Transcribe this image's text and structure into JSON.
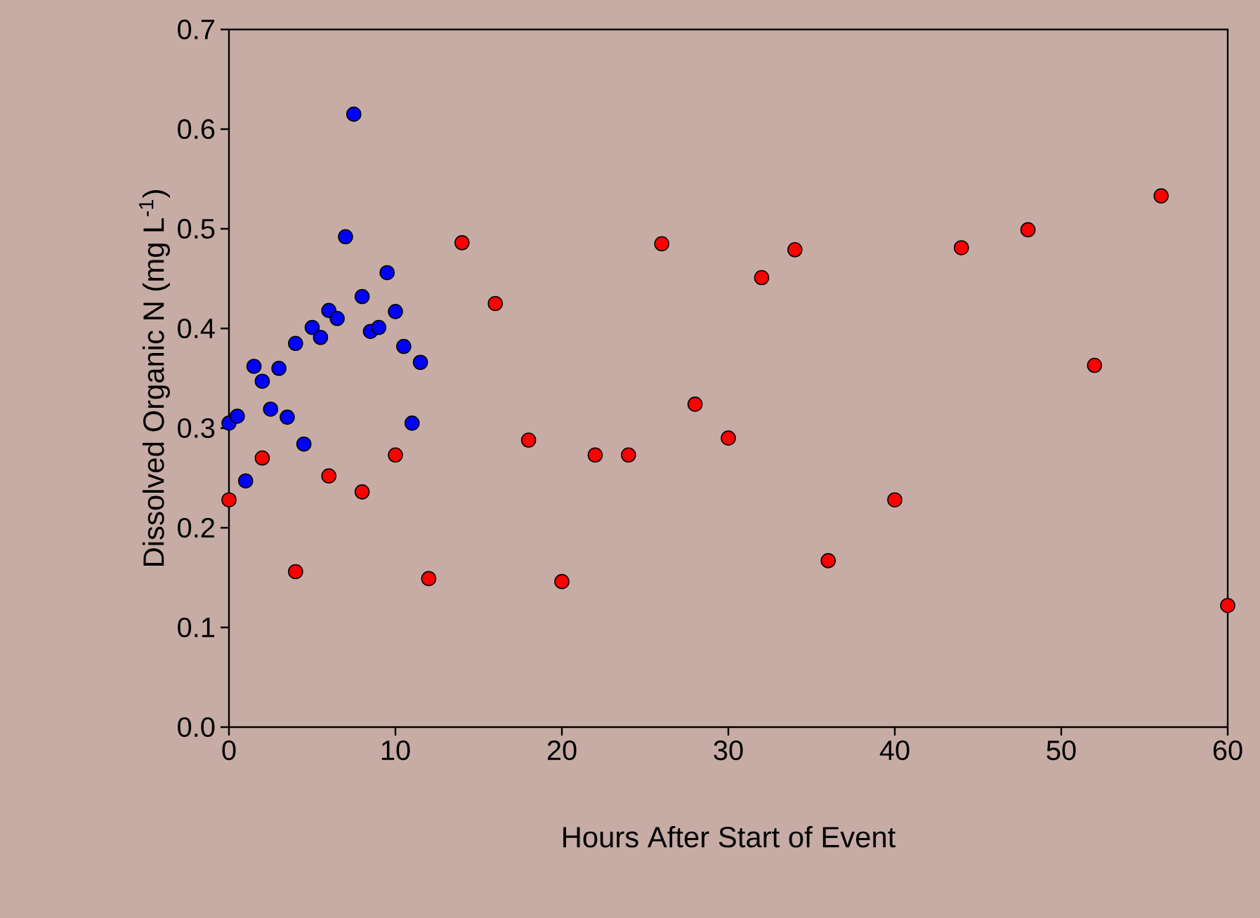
{
  "chart_data": {
    "type": "scatter",
    "xlabel": "Hours After Start of Event",
    "ylabel": "Dissolved Organic N (mg L$^{-1}$)",
    "xlim": [
      0,
      60
    ],
    "xticks": [
      0,
      10,
      20,
      30,
      40,
      50,
      60
    ],
    "ylim": [
      0,
      0.7
    ],
    "yticks": [
      {
        "value": 0,
        "label": "0.0"
      },
      0.1,
      0.2,
      0.3,
      0.4,
      0.5,
      0.6,
      0.7
    ],
    "marker": "circle",
    "series": [
      {
        "color": "#0000ff",
        "x": [
          0,
          0.5,
          1,
          1.5,
          2,
          2.5,
          3,
          3.5,
          4,
          4.5,
          5,
          5.5,
          6,
          6.5,
          7,
          7.5,
          8,
          8.5,
          9,
          9.5,
          10,
          10.5,
          11,
          11.5
        ],
        "values": [
          0.305,
          0.312,
          0.247,
          0.362,
          0.347,
          0.319,
          0.36,
          0.311,
          0.385,
          0.284,
          0.401,
          0.391,
          0.418,
          0.41,
          0.492,
          0.615,
          0.432,
          0.397,
          0.401,
          0.456,
          0.417,
          0.382,
          0.305,
          0.366
        ]
      },
      {
        "color": "#ff0000",
        "x": [
          0,
          2,
          4,
          6,
          8,
          10,
          12,
          14,
          16,
          18,
          20,
          22,
          24,
          26,
          28,
          30,
          32,
          34,
          36,
          40,
          44,
          48,
          52,
          56,
          60
        ],
        "values": [
          0.228,
          0.27,
          0.156,
          0.252,
          0.236,
          0.273,
          0.149,
          0.486,
          0.425,
          0.288,
          0.146,
          0.273,
          0.273,
          0.485,
          0.324,
          0.29,
          0.451,
          0.479,
          0.167,
          0.228,
          0.481,
          0.499,
          0.363,
          0.533,
          0.122
        ]
      }
    ]
  }
}
